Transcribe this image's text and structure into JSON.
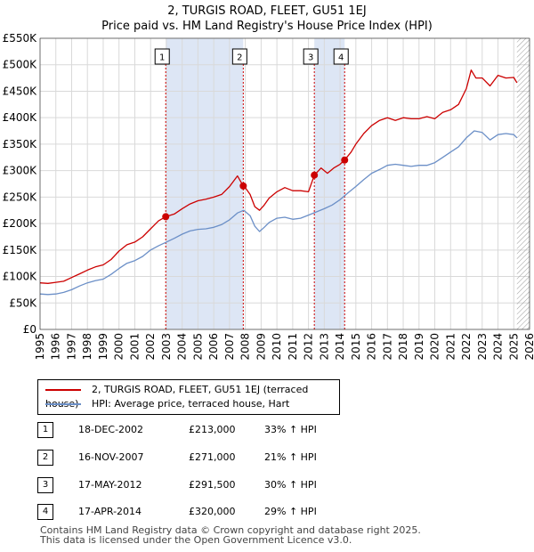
{
  "chart_data": {
    "type": "line",
    "title": "2, TURGIS ROAD, FLEET, GU51 1EJ",
    "subtitle": "Price paid vs. HM Land Registry's House Price Index (HPI)",
    "xlim": [
      1995,
      2026
    ],
    "ylim": [
      0,
      550000
    ],
    "y_ticks": [
      0,
      50000,
      100000,
      150000,
      200000,
      250000,
      300000,
      350000,
      400000,
      450000,
      500000,
      550000
    ],
    "y_tick_labels": [
      "£0",
      "£50K",
      "£100K",
      "£150K",
      "£200K",
      "£250K",
      "£300K",
      "£350K",
      "£400K",
      "£450K",
      "£500K",
      "£550K"
    ],
    "x_ticks": [
      1995,
      1996,
      1997,
      1998,
      1999,
      2000,
      2001,
      2002,
      2003,
      2004,
      2005,
      2006,
      2007,
      2008,
      2009,
      2010,
      2011,
      2012,
      2013,
      2014,
      2015,
      2016,
      2017,
      2018,
      2019,
      2020,
      2021,
      2022,
      2023,
      2024,
      2025,
      2026
    ],
    "grid": true,
    "colors": {
      "property": "#cc0000",
      "hpi": "#6b8fc7",
      "shade": "#dde6f5",
      "sale_marker": "#cc0000"
    },
    "shaded_ranges": [
      [
        2002.96,
        2007.87
      ],
      [
        2012.37,
        2014.29
      ]
    ],
    "future_hatch_from": 2025.2,
    "series": [
      {
        "name": "2, TURGIS ROAD, FLEET, GU51 1EJ (terraced house)",
        "color": "#cc0000",
        "x": [
          1995.0,
          1995.5,
          1996.0,
          1996.5,
          1997.0,
          1997.5,
          1998.0,
          1998.5,
          1999.0,
          1999.5,
          2000.0,
          2000.5,
          2001.0,
          2001.5,
          2002.0,
          2002.5,
          2002.96,
          2003.5,
          2004.0,
          2004.5,
          2005.0,
          2005.5,
          2006.0,
          2006.5,
          2007.0,
          2007.5,
          2007.87,
          2008.0,
          2008.3,
          2008.6,
          2008.9,
          2009.2,
          2009.5,
          2010.0,
          2010.5,
          2011.0,
          2011.5,
          2012.0,
          2012.37,
          2012.8,
          2013.2,
          2013.6,
          2014.0,
          2014.29,
          2014.7,
          2015.0,
          2015.5,
          2016.0,
          2016.5,
          2017.0,
          2017.5,
          2018.0,
          2018.5,
          2019.0,
          2019.5,
          2020.0,
          2020.5,
          2021.0,
          2021.5,
          2022.0,
          2022.3,
          2022.6,
          2023.0,
          2023.5,
          2024.0,
          2024.5,
          2025.0,
          2025.2
        ],
        "values": [
          88000,
          87000,
          89000,
          91000,
          98000,
          105000,
          112000,
          118000,
          122000,
          132000,
          148000,
          160000,
          165000,
          175000,
          190000,
          205000,
          213000,
          218000,
          228000,
          237000,
          243000,
          246000,
          250000,
          255000,
          270000,
          290000,
          271000,
          268000,
          255000,
          232000,
          225000,
          235000,
          248000,
          260000,
          268000,
          262000,
          262000,
          260000,
          291500,
          305000,
          295000,
          305000,
          312000,
          320000,
          335000,
          350000,
          370000,
          385000,
          395000,
          400000,
          395000,
          400000,
          398000,
          398000,
          402000,
          398000,
          410000,
          415000,
          425000,
          455000,
          490000,
          475000,
          475000,
          460000,
          480000,
          475000,
          476000,
          466000
        ]
      },
      {
        "name": "HPI: Average price, terraced house, Hart",
        "color": "#6b8fc7",
        "x": [
          1995.0,
          1995.5,
          1996.0,
          1996.5,
          1997.0,
          1997.5,
          1998.0,
          1998.5,
          1999.0,
          1999.5,
          2000.0,
          2000.5,
          2001.0,
          2001.5,
          2002.0,
          2002.5,
          2003.0,
          2003.5,
          2004.0,
          2004.5,
          2005.0,
          2005.5,
          2006.0,
          2006.5,
          2007.0,
          2007.5,
          2007.9,
          2008.3,
          2008.6,
          2008.9,
          2009.2,
          2009.5,
          2010.0,
          2010.5,
          2011.0,
          2011.5,
          2012.0,
          2012.5,
          2013.0,
          2013.5,
          2014.0,
          2014.5,
          2015.0,
          2015.5,
          2016.0,
          2016.5,
          2017.0,
          2017.5,
          2018.0,
          2018.5,
          2019.0,
          2019.5,
          2020.0,
          2020.5,
          2021.0,
          2021.5,
          2022.0,
          2022.5,
          2023.0,
          2023.5,
          2024.0,
          2024.5,
          2025.0,
          2025.2
        ],
        "values": [
          67000,
          66000,
          67000,
          70000,
          75000,
          82000,
          88000,
          92000,
          95000,
          104000,
          115000,
          125000,
          130000,
          138000,
          150000,
          158000,
          165000,
          172000,
          180000,
          186000,
          189000,
          190000,
          193000,
          198000,
          207000,
          220000,
          225000,
          215000,
          195000,
          185000,
          193000,
          202000,
          210000,
          212000,
          208000,
          210000,
          216000,
          222000,
          228000,
          235000,
          245000,
          258000,
          270000,
          283000,
          295000,
          302000,
          310000,
          312000,
          310000,
          308000,
          310000,
          310000,
          315000,
          325000,
          335000,
          345000,
          362000,
          375000,
          372000,
          358000,
          368000,
          370000,
          368000,
          362000
        ]
      }
    ],
    "sales": [
      {
        "num": "1",
        "x": 2002.96,
        "value": 213000
      },
      {
        "num": "2",
        "x": 2007.87,
        "value": 271000
      },
      {
        "num": "3",
        "x": 2012.37,
        "value": 291500
      },
      {
        "num": "4",
        "x": 2014.29,
        "value": 320000
      }
    ]
  },
  "header": {
    "title": "2, TURGIS ROAD, FLEET, GU51 1EJ",
    "subtitle": "Price paid vs. HM Land Registry's House Price Index (HPI)"
  },
  "legend": {
    "property_label": "2, TURGIS ROAD, FLEET, GU51 1EJ (terraced house)",
    "hpi_label": "HPI: Average price, terraced house, Hart"
  },
  "sales_table": [
    {
      "num": "1",
      "date": "18-DEC-2002",
      "price": "£213,000",
      "hpi": "33% ↑ HPI"
    },
    {
      "num": "2",
      "date": "16-NOV-2007",
      "price": "£271,000",
      "hpi": "21% ↑ HPI"
    },
    {
      "num": "3",
      "date": "17-MAY-2012",
      "price": "£291,500",
      "hpi": "30% ↑ HPI"
    },
    {
      "num": "4",
      "date": "17-APR-2014",
      "price": "£320,000",
      "hpi": "29% ↑ HPI"
    }
  ],
  "footer": {
    "line1": "Contains HM Land Registry data © Crown copyright and database right 2025.",
    "line2": "This data is licensed under the Open Government Licence v3.0."
  }
}
